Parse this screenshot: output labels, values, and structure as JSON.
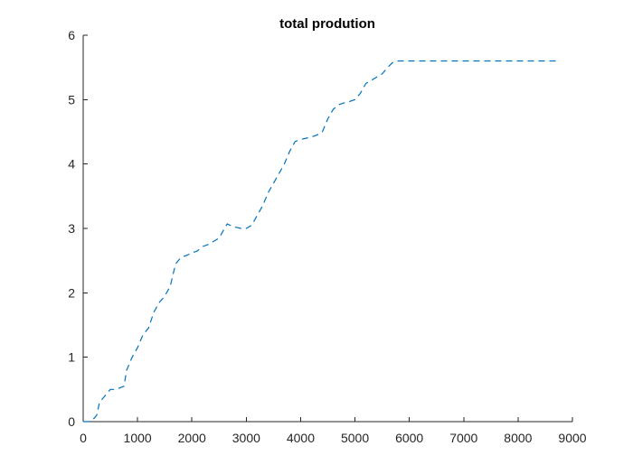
{
  "chart_data": {
    "type": "line",
    "title": "total prodution",
    "xlabel": "",
    "ylabel": "",
    "xlim": [
      0,
      9000
    ],
    "ylim": [
      0,
      6
    ],
    "xticks": [
      0,
      1000,
      2000,
      3000,
      4000,
      5000,
      6000,
      7000,
      8000,
      9000
    ],
    "yticks": [
      0,
      1,
      2,
      3,
      4,
      5,
      6
    ],
    "grid": false,
    "series": [
      {
        "color": "#0072BD",
        "line_style": "dashed",
        "x": [
          0,
          100,
          200,
          250,
          300,
          400,
          500,
          600,
          750,
          800,
          900,
          1000,
          1100,
          1200,
          1300,
          1400,
          1500,
          1600,
          1700,
          1800,
          1900,
          2000,
          2100,
          2200,
          2300,
          2400,
          2500,
          2600,
          2650,
          2700,
          2800,
          2900,
          3000,
          3100,
          3200,
          3300,
          3400,
          3500,
          3600,
          3700,
          3800,
          3900,
          4000,
          4100,
          4200,
          4300,
          4400,
          4500,
          4600,
          4700,
          4800,
          4900,
          5000,
          5100,
          5200,
          5300,
          5400,
          5500,
          5600,
          5700,
          5800,
          6000,
          7000,
          8000,
          8700
        ],
        "y": [
          0,
          0,
          0.05,
          0.1,
          0.3,
          0.4,
          0.5,
          0.5,
          0.55,
          0.8,
          1.0,
          1.15,
          1.35,
          1.45,
          1.7,
          1.85,
          1.95,
          2.1,
          2.45,
          2.55,
          2.58,
          2.62,
          2.65,
          2.72,
          2.75,
          2.8,
          2.85,
          3.0,
          3.07,
          3.05,
          3.02,
          3.0,
          3.0,
          3.05,
          3.2,
          3.35,
          3.55,
          3.7,
          3.85,
          4.0,
          4.2,
          4.35,
          4.38,
          4.4,
          4.42,
          4.45,
          4.5,
          4.7,
          4.85,
          4.92,
          4.95,
          4.97,
          5.0,
          5.1,
          5.25,
          5.3,
          5.35,
          5.4,
          5.5,
          5.58,
          5.6,
          5.6,
          5.6,
          5.6,
          5.6
        ]
      }
    ]
  }
}
